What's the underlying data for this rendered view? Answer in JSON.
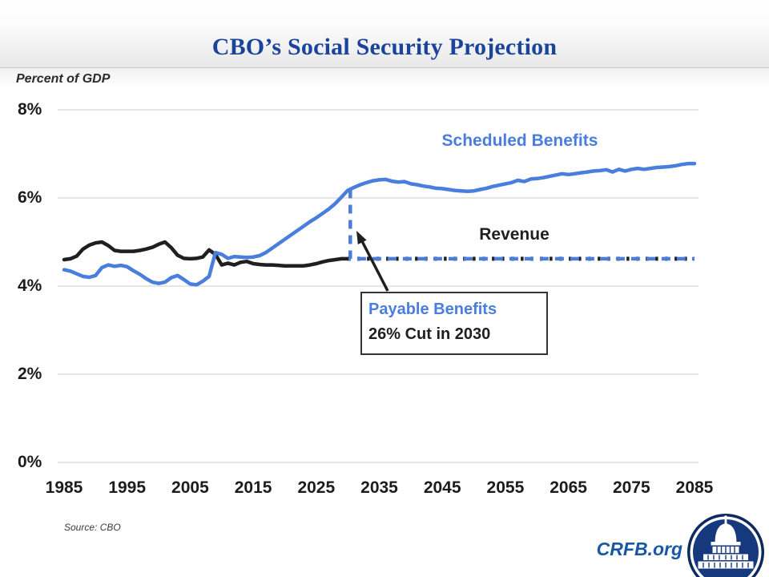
{
  "header": {
    "title": "CBO’s Social Security Projection"
  },
  "axis_note": "Percent of GDP",
  "labels": {
    "scheduled": "Scheduled Benefits",
    "revenue": "Revenue"
  },
  "callout": {
    "line1": "Payable Benefits",
    "line2": "26% Cut in 2030"
  },
  "footer": {
    "source": "Source: CBO",
    "brand": "CRFB.org",
    "logo": "capitol-logo"
  },
  "colors": {
    "benefits_blue": "#4A7EDC",
    "revenue_black": "#1F1F1F",
    "title_navy": "#1A449C",
    "brand_blue": "#1A57A5",
    "grid_gray": "#D8D8D8",
    "logo_navy": "#16397E"
  },
  "chart_data": {
    "type": "line",
    "title": "CBO’s Social Security Projection",
    "xlabel": "",
    "ylabel": "Percent of GDP",
    "ylim": [
      0,
      8
    ],
    "xlim": [
      1985,
      2085
    ],
    "grid": true,
    "yticks": [
      0,
      2,
      4,
      6,
      8
    ],
    "ytick_labels": [
      "0%",
      "2%",
      "4%",
      "6%",
      "8%"
    ],
    "xticks": [
      1985,
      1995,
      2005,
      2015,
      2025,
      2035,
      2045,
      2055,
      2065,
      2075,
      2085
    ],
    "xtick_labels": [
      "1985",
      "1995",
      "2005",
      "2015",
      "2025",
      "2035",
      "2045",
      "2055",
      "2065",
      "2075",
      "2085"
    ],
    "annotations": {
      "scheduled_label": "Scheduled Benefits",
      "revenue_label": "Revenue",
      "callout": "Payable Benefits — 26% Cut in 2030",
      "cut_year": 2030,
      "cut_percent": 26
    },
    "series": [
      {
        "name": "Revenue (historical)",
        "color": "#1F1F1F",
        "style": "solid",
        "years": [
          1985,
          1986,
          1987,
          1988,
          1989,
          1990,
          1991,
          1992,
          1993,
          1994,
          1995,
          1996,
          1997,
          1998,
          1999,
          2000,
          2001,
          2002,
          2003,
          2004,
          2005,
          2006,
          2007,
          2008,
          2009,
          2010,
          2011,
          2012,
          2013,
          2014,
          2015,
          2016,
          2017,
          2018,
          2019,
          2020,
          2021,
          2022,
          2023,
          2024,
          2025,
          2026,
          2027,
          2028,
          2029,
          2030
        ],
        "values": [
          4.6,
          4.62,
          4.68,
          4.84,
          4.93,
          4.98,
          5.0,
          4.92,
          4.81,
          4.79,
          4.79,
          4.79,
          4.81,
          4.84,
          4.88,
          4.95,
          5.0,
          4.87,
          4.7,
          4.63,
          4.62,
          4.63,
          4.66,
          4.82,
          4.72,
          4.48,
          4.52,
          4.48,
          4.54,
          4.56,
          4.51,
          4.49,
          4.48,
          4.48,
          4.47,
          4.46,
          4.46,
          4.46,
          4.46,
          4.48,
          4.51,
          4.55,
          4.58,
          4.6,
          4.62,
          4.62
        ]
      },
      {
        "name": "Revenue (projected)",
        "color": "#1F1F1F",
        "style": "dotted",
        "years": [
          2030,
          2085
        ],
        "values": [
          4.62,
          4.62
        ]
      },
      {
        "name": "Payable Benefits (projected)",
        "color": "#4A7EDC",
        "style": "dashed",
        "years": [
          2030.4,
          2030.4,
          2085
        ],
        "values": [
          6.19,
          4.62,
          4.62
        ]
      },
      {
        "name": "Scheduled Benefits",
        "color": "#4A7EDC",
        "style": "solid",
        "years": [
          1985,
          1986,
          1987,
          1988,
          1989,
          1990,
          1991,
          1992,
          1993,
          1994,
          1995,
          1996,
          1997,
          1998,
          1999,
          2000,
          2001,
          2002,
          2003,
          2004,
          2005,
          2006,
          2007,
          2008,
          2009,
          2010,
          2011,
          2012,
          2013,
          2014,
          2015,
          2016,
          2017,
          2018,
          2019,
          2020,
          2021,
          2022,
          2023,
          2024,
          2025,
          2026,
          2027,
          2028,
          2029,
          2030,
          2031,
          2032,
          2033,
          2034,
          2035,
          2036,
          2037,
          2038,
          2039,
          2040,
          2041,
          2042,
          2043,
          2044,
          2045,
          2046,
          2047,
          2048,
          2049,
          2050,
          2051,
          2052,
          2053,
          2054,
          2055,
          2056,
          2057,
          2058,
          2059,
          2060,
          2061,
          2062,
          2063,
          2064,
          2065,
          2066,
          2067,
          2068,
          2069,
          2070,
          2071,
          2072,
          2073,
          2074,
          2075,
          2076,
          2077,
          2078,
          2079,
          2080,
          2081,
          2082,
          2083,
          2084,
          2085
        ],
        "values": [
          4.37,
          4.34,
          4.28,
          4.22,
          4.2,
          4.24,
          4.42,
          4.48,
          4.45,
          4.47,
          4.44,
          4.35,
          4.27,
          4.17,
          4.09,
          4.06,
          4.09,
          4.19,
          4.24,
          4.15,
          4.05,
          4.03,
          4.11,
          4.22,
          4.76,
          4.72,
          4.63,
          4.67,
          4.66,
          4.65,
          4.66,
          4.69,
          4.76,
          4.86,
          4.96,
          5.06,
          5.16,
          5.26,
          5.36,
          5.46,
          5.55,
          5.65,
          5.75,
          5.87,
          6.02,
          6.17,
          6.24,
          6.3,
          6.35,
          6.39,
          6.41,
          6.42,
          6.38,
          6.36,
          6.37,
          6.32,
          6.3,
          6.27,
          6.25,
          6.22,
          6.21,
          6.19,
          6.17,
          6.16,
          6.15,
          6.16,
          6.19,
          6.22,
          6.26,
          6.29,
          6.32,
          6.35,
          6.4,
          6.37,
          6.43,
          6.44,
          6.46,
          6.49,
          6.52,
          6.55,
          6.53,
          6.55,
          6.57,
          6.59,
          6.61,
          6.62,
          6.64,
          6.59,
          6.65,
          6.61,
          6.65,
          6.67,
          6.65,
          6.67,
          6.69,
          6.7,
          6.71,
          6.73,
          6.76,
          6.78,
          6.78
        ]
      }
    ]
  }
}
